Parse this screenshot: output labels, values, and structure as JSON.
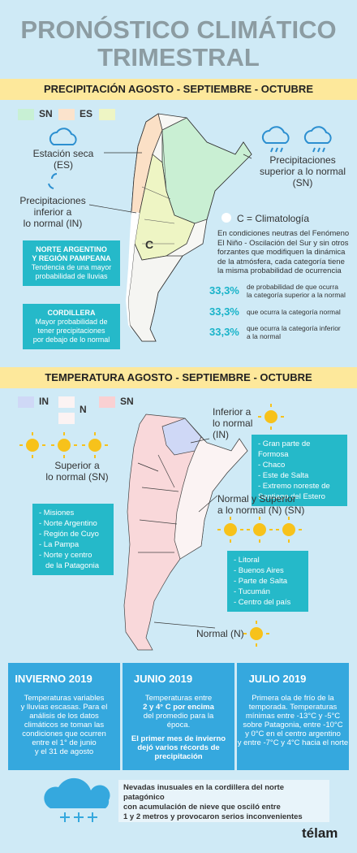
{
  "header": {
    "title_lines": [
      "PRONÓSTICO CLIMÁTICO",
      "TRIMESTRAL"
    ]
  },
  "precipitation": {
    "heading": "PRECIPITACIÓN AGOSTO - SEPTIEMBRE - OCTUBRE",
    "legend": [
      "SN",
      "ES"
    ],
    "dry_label": [
      "Estación seca",
      "(ES)"
    ],
    "above_label": [
      "Precipitaciones",
      "superior a lo normal",
      "(SN)"
    ],
    "below_label": [
      "Precipitaciones",
      "inferior a",
      "lo normal (IN)"
    ],
    "map_label": "C",
    "boxes": [
      {
        "title": [
          "NORTE ARGENTINO",
          "Y REGIÓN PAMPEANA"
        ],
        "text": [
          "Tendencia de una mayor",
          "probabilidad de lluvias"
        ]
      },
      {
        "title": [
          "CORDILLERA"
        ],
        "text": [
          "Mayor probabilidad de",
          "tener precipitaciones",
          "por debajo de lo normal"
        ]
      }
    ],
    "climatology": {
      "title": "C = Climatología",
      "text": [
        "En condiciones neutras del Fenómeno",
        "El Niño - Oscilación del Sur y sin otros",
        "forzantes que modifiquen la dinámica",
        "de la atmósfera, cada categoría tiene",
        "la misma probabilidad de ocurrencia"
      ],
      "rows": [
        {
          "value": "33,3%",
          "text": [
            "de probabilidad de que ocurra",
            "la categoría superior a la normal"
          ]
        },
        {
          "value": "33,3%",
          "text": [
            "que ocurra la categoría normal"
          ]
        },
        {
          "value": "33,3%",
          "text": [
            "que ocurra la categoría inferior",
            "a la normal"
          ]
        }
      ]
    }
  },
  "temperature": {
    "heading": "TEMPERATURA AGOSTO - SEPTIEMBRE - OCTUBRE",
    "legend": [
      "IN",
      "N",
      "SN"
    ],
    "below": {
      "label": [
        "Inferior a",
        "lo normal",
        "(IN)"
      ],
      "items": [
        "- Gran parte de Formosa",
        "- Chaco",
        "- Este de Salta",
        "- Extremo noreste de",
        "Santiago del Estero"
      ]
    },
    "above": {
      "label": [
        "Superior a",
        "lo normal (SN)"
      ],
      "items": [
        "- Misiones",
        "- Norte Argentino",
        "- Región de Cuyo",
        "- La Pampa",
        "- Norte y centro",
        "de la Patagonia"
      ]
    },
    "normal_above": {
      "label": [
        "Normal y Superior",
        "a lo normal  (N) (SN)"
      ],
      "items": [
        "- Litoral",
        "- Buenos Aires",
        "- Parte de Salta",
        "- Tucumán",
        "- Centro del país"
      ]
    },
    "normal_label": "Normal (N)"
  },
  "cards": [
    {
      "title": "INVIERNO 2019",
      "text": [
        "Temperaturas variables",
        "y lluvias escasas. Para el",
        "análisis de los datos",
        "climáticos se toman las",
        "condiciones que ocurren",
        "entre el 1° de junio",
        "y el 31 de agosto"
      ]
    },
    {
      "title": "JUNIO 2019",
      "text": [
        "Temperaturas entre",
        "2 y 4° C por encima",
        "del promedio para la",
        "época."
      ],
      "bold": [
        "El primer mes de invierno",
        "dejó varios récords de",
        "precipitación"
      ]
    },
    {
      "title": "JULIO 2019",
      "text": [
        "Primera ola de frío de la",
        "temporada. Temperaturas",
        "mínimas entre -13°C y -5°C",
        "sobre Patagonia, entre -10°C",
        "y 0°C en el centro argentino",
        "y entre -7°C y 4°C hacia el norte"
      ]
    }
  ],
  "footer": {
    "note": [
      "Nevadas inusuales en la cordillera del norte patagónico",
      "con acumulación de nieve que osciló entre",
      "1 y 2 metros y provocaron serios inconvenientes"
    ],
    "brand": "télam"
  }
}
